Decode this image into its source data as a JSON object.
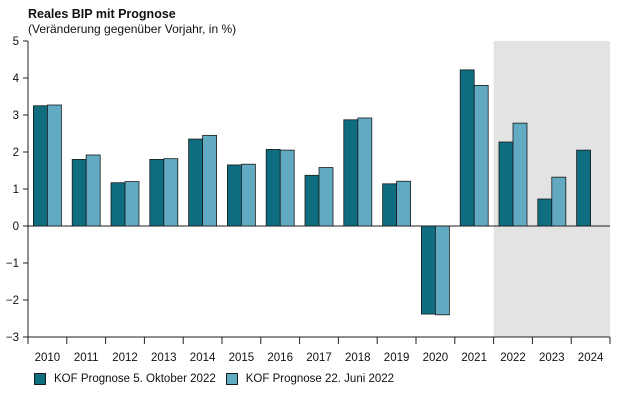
{
  "chart_data": {
    "type": "bar",
    "title": "Reales BIP mit Prognose",
    "subtitle": "(Veränderung gegenüber Vorjahr, in %)",
    "categories": [
      "2010",
      "2011",
      "2012",
      "2013",
      "2014",
      "2015",
      "2016",
      "2017",
      "2018",
      "2019",
      "2020",
      "2021",
      "2022",
      "2023",
      "2024"
    ],
    "series": [
      {
        "name": "KOF Prognose 5. Oktober 2022",
        "color": "#0e6e80",
        "values": [
          3.25,
          1.8,
          1.17,
          1.8,
          2.35,
          1.65,
          2.07,
          1.37,
          2.87,
          1.14,
          -2.38,
          4.22,
          2.27,
          0.73,
          2.05
        ]
      },
      {
        "name": "KOF Prognose 22. Juni 2022",
        "color": "#62a9c2",
        "values": [
          3.27,
          1.92,
          1.2,
          1.82,
          2.45,
          1.67,
          2.05,
          1.58,
          2.92,
          1.21,
          -2.4,
          3.8,
          2.78,
          1.32,
          null
        ]
      }
    ],
    "ylim": [
      -3,
      5
    ],
    "yticks": [
      -3,
      -2,
      -1,
      0,
      1,
      2,
      3,
      4,
      5
    ],
    "ytick_labels": [
      "−3",
      "−2",
      "−1",
      "0",
      "1",
      "2",
      "3",
      "4",
      "5"
    ],
    "forecast_shaded_from": "2022",
    "shade_color": "#e3e3e3",
    "grid": false,
    "legend_position": "bottom-left"
  }
}
